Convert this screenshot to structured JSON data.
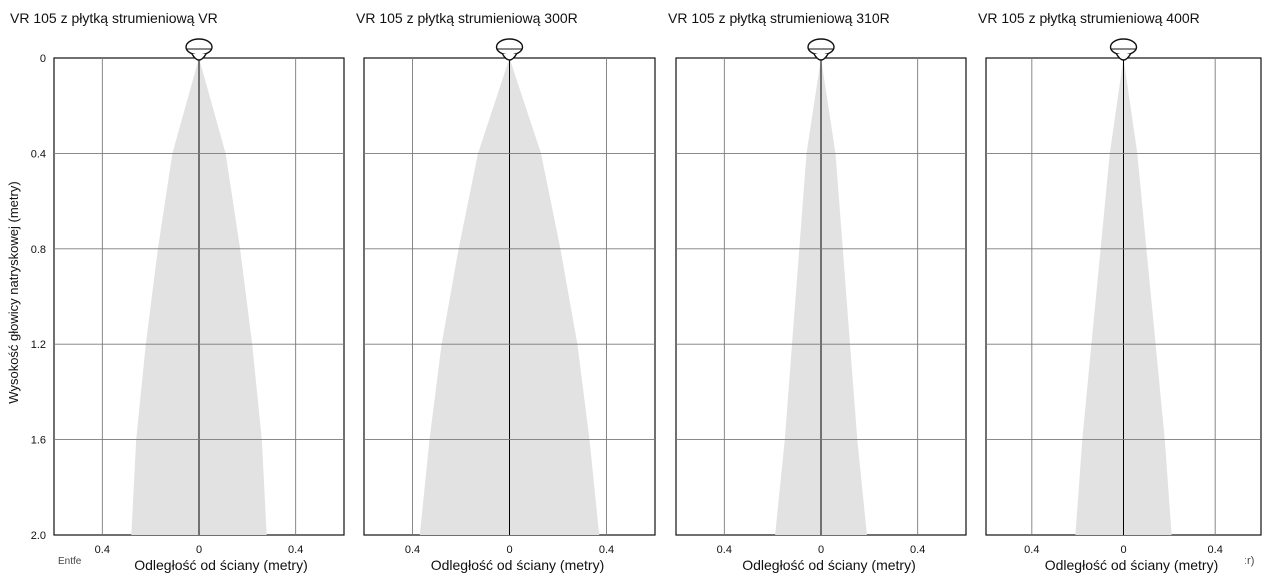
{
  "chart_data": [
    {
      "type": "area",
      "title": "VR 105 z płytką strumieniową VR",
      "xlabel": "Odległość od ściany (metry)",
      "ylabel": "Wysokość głowicy natryskowej (metry)",
      "xlim": [
        -0.6,
        0.6
      ],
      "ylim": [
        0,
        2.0
      ],
      "y_inverted": true,
      "xticks": [
        -0.4,
        0,
        0.4
      ],
      "xtick_labels": [
        "0.4",
        "0",
        "0.4"
      ],
      "yticks": [
        0,
        0.4,
        0.8,
        1.2,
        1.6,
        2.0
      ],
      "ytick_labels": [
        "0",
        "0.4",
        "0.8",
        "1.2",
        "1.6",
        "2.0"
      ],
      "grid": true,
      "spray_profile": [
        {
          "y": 0.0,
          "halfwidth": 0.0
        },
        {
          "y": 0.4,
          "halfwidth": 0.11
        },
        {
          "y": 0.8,
          "halfwidth": 0.17
        },
        {
          "y": 1.2,
          "halfwidth": 0.22
        },
        {
          "y": 1.6,
          "halfwidth": 0.26
        },
        {
          "y": 2.0,
          "halfwidth": 0.28
        }
      ]
    },
    {
      "type": "area",
      "title": "VR 105 z płytką strumieniową 300R",
      "xlabel": "Odległość od ściany (metry)",
      "xlim": [
        -0.6,
        0.6
      ],
      "ylim": [
        0,
        2.0
      ],
      "y_inverted": true,
      "xticks": [
        -0.4,
        0,
        0.4
      ],
      "xtick_labels": [
        "0.4",
        "0",
        "0.4"
      ],
      "yticks": [
        0,
        0.4,
        0.8,
        1.2,
        1.6,
        2.0
      ],
      "grid": true,
      "spray_profile": [
        {
          "y": 0.0,
          "halfwidth": 0.0
        },
        {
          "y": 0.4,
          "halfwidth": 0.13
        },
        {
          "y": 0.8,
          "halfwidth": 0.21
        },
        {
          "y": 1.2,
          "halfwidth": 0.28
        },
        {
          "y": 1.6,
          "halfwidth": 0.33
        },
        {
          "y": 2.0,
          "halfwidth": 0.37
        }
      ]
    },
    {
      "type": "area",
      "title": "VR 105 z płytką strumieniową 310R",
      "xlabel": "Odległość od ściany (metry)",
      "xlim": [
        -0.6,
        0.6
      ],
      "ylim": [
        0,
        2.0
      ],
      "y_inverted": true,
      "xticks": [
        -0.4,
        0,
        0.4
      ],
      "xtick_labels": [
        "0.4",
        "0",
        "0.4"
      ],
      "yticks": [
        0,
        0.4,
        0.8,
        1.2,
        1.6,
        2.0
      ],
      "grid": true,
      "spray_profile": [
        {
          "y": 0.0,
          "halfwidth": 0.0
        },
        {
          "y": 0.4,
          "halfwidth": 0.06
        },
        {
          "y": 0.8,
          "halfwidth": 0.09
        },
        {
          "y": 1.2,
          "halfwidth": 0.12
        },
        {
          "y": 1.6,
          "halfwidth": 0.15
        },
        {
          "y": 2.0,
          "halfwidth": 0.19
        }
      ]
    },
    {
      "type": "area",
      "title": "VR 105 z płytką strumieniową 400R",
      "xlabel": "Odległość od ściany (metry)",
      "xlim": [
        -0.6,
        0.6
      ],
      "ylim": [
        0,
        2.0
      ],
      "y_inverted": true,
      "xticks": [
        -0.4,
        0,
        0.4
      ],
      "xtick_labels": [
        "0.4",
        "0",
        "0.4"
      ],
      "yticks": [
        0,
        0.4,
        0.8,
        1.2,
        1.6,
        2.0
      ],
      "grid": true,
      "spray_profile": [
        {
          "y": 0.0,
          "halfwidth": 0.0
        },
        {
          "y": 0.4,
          "halfwidth": 0.06
        },
        {
          "y": 0.8,
          "halfwidth": 0.1
        },
        {
          "y": 1.2,
          "halfwidth": 0.14
        },
        {
          "y": 1.6,
          "halfwidth": 0.18
        },
        {
          "y": 2.0,
          "halfwidth": 0.21
        }
      ]
    }
  ],
  "fragments": {
    "left": "Entfe",
    "right": "ːr)"
  },
  "colors": {
    "spray": "#e2e2e2",
    "grid": "#7a7a7a",
    "frame": "#111111",
    "axis": "#000000"
  },
  "icons": {
    "nozzle": "spray-nozzle-icon"
  }
}
